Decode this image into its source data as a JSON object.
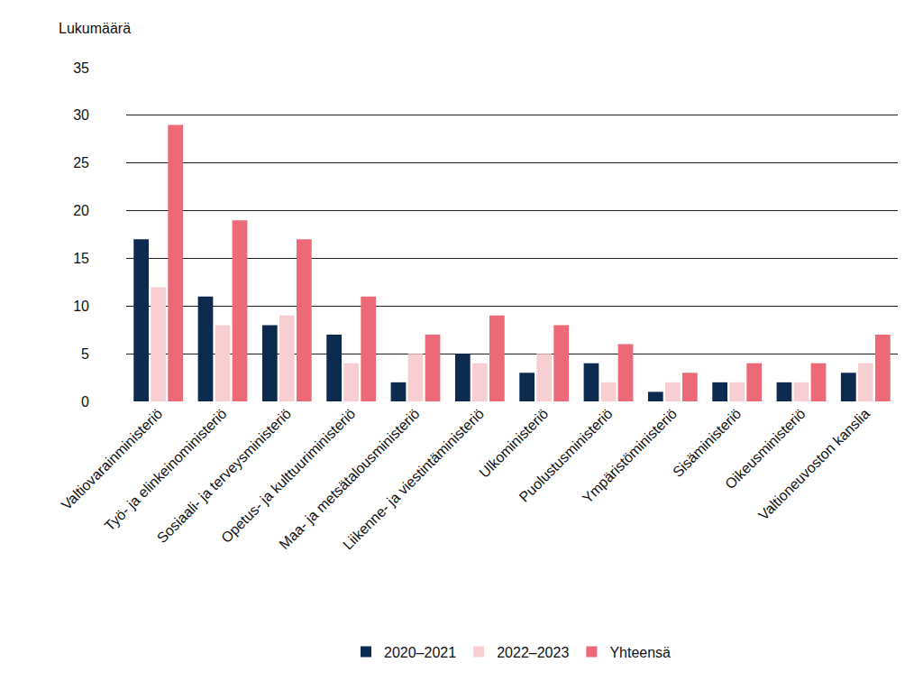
{
  "chart_data": {
    "type": "bar",
    "y_label": "Lukumäärä",
    "categories": [
      "Valtiovarainministeriö",
      "Työ- ja elinkeinoministeriö",
      "Sosiaali- ja terveysministeriö",
      "Opetus- ja kulttuuriministeriö",
      "Maa- ja metsätalousministeriö",
      "Liikenne- ja viestintäministeriö",
      "Ulkoministeriö",
      "Puolustusministeriö",
      "Ympäristöministeriö",
      "Sisäministeriö",
      "Oikeusministeriö",
      "Valtioneuvoston kanslia"
    ],
    "series": [
      {
        "name": "2020–2021",
        "color": "#0d2a4f",
        "values": [
          17,
          11,
          8,
          7,
          2,
          5,
          3,
          4,
          1,
          2,
          2,
          3
        ]
      },
      {
        "name": "2022–2023",
        "color": "#f7cfd2",
        "values": [
          12,
          8,
          9,
          4,
          5,
          4,
          5,
          2,
          2,
          2,
          2,
          4
        ]
      },
      {
        "name": "Yhteensä",
        "color": "#ec6a78",
        "values": [
          29,
          19,
          17,
          11,
          7,
          9,
          8,
          6,
          3,
          4,
          4,
          7
        ]
      }
    ],
    "ylim": [
      0,
      35
    ],
    "yticks": [
      0,
      5,
      10,
      15,
      20,
      25,
      30,
      35
    ],
    "grid": true,
    "legend": "bottom"
  }
}
